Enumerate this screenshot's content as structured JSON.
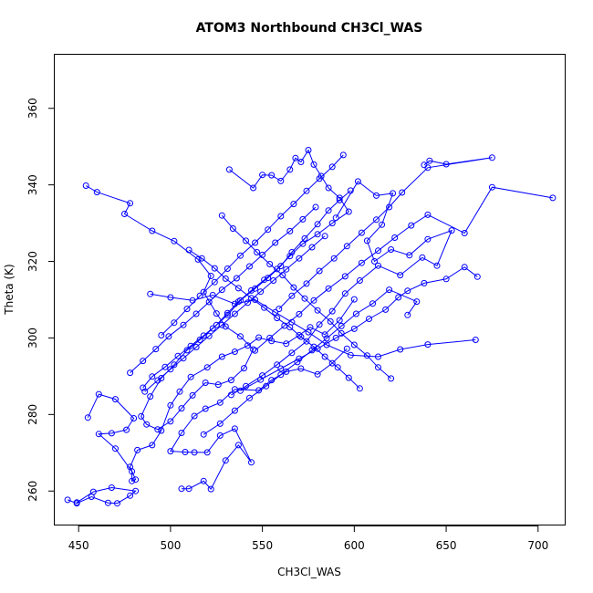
{
  "chart_data": {
    "type": "line",
    "title": "ATOM3 Northbound CH3Cl_WAS",
    "xlabel": "CH3Cl_WAS",
    "ylabel": "Theta (K)",
    "xlim": [
      437,
      715
    ],
    "ylim": [
      251,
      374
    ],
    "xticks": [
      450,
      500,
      550,
      600,
      650,
      700
    ],
    "yticks": [
      260,
      280,
      300,
      320,
      340,
      360
    ],
    "series_color": "#0000ff",
    "markers": "open-circle",
    "grid": false,
    "series": [
      {
        "values": [
          [
            444,
            257.7
          ],
          [
            449,
            256.8
          ],
          [
            457,
            258.5
          ],
          [
            466,
            256.9
          ],
          [
            471,
            256.8
          ],
          [
            478,
            258.8
          ],
          [
            481,
            260.0
          ],
          [
            468,
            260.9
          ],
          [
            458,
            259.8
          ],
          [
            449,
            257.0
          ]
        ]
      },
      {
        "values": [
          [
            455,
            279.2
          ],
          [
            461,
            285.3
          ],
          [
            470,
            284.0
          ],
          [
            480,
            279.0
          ],
          [
            476,
            276.0
          ],
          [
            468,
            275.1
          ],
          [
            461,
            274.9
          ],
          [
            470,
            271.1
          ],
          [
            479,
            265.1
          ],
          [
            479,
            262.6
          ],
          [
            481,
            263.0
          ],
          [
            478,
            266.3
          ],
          [
            482,
            270.7
          ],
          [
            490,
            272.0
          ],
          [
            495,
            275.8
          ],
          [
            500,
            282.4
          ],
          [
            505,
            286.0
          ],
          [
            511,
            289.8
          ],
          [
            520,
            292.3
          ],
          [
            528,
            295.1
          ],
          [
            535,
            296.4
          ],
          [
            542,
            298.0
          ],
          [
            548,
            300.1
          ],
          [
            555,
            299.2
          ],
          [
            563,
            298.5
          ],
          [
            570,
            300.7
          ],
          [
            576,
            302.8
          ],
          [
            584,
            300.9
          ],
          [
            592,
            304.6
          ],
          [
            600,
            310.1
          ]
        ]
      },
      {
        "values": [
          [
            454,
            339.8
          ],
          [
            460,
            338.1
          ],
          [
            478,
            335.2
          ],
          [
            475,
            332.4
          ],
          [
            490,
            328.0
          ],
          [
            502,
            325.3
          ],
          [
            515,
            320.5
          ],
          [
            522,
            316.2
          ],
          [
            518,
            312.0
          ],
          [
            525,
            306.4
          ],
          [
            530,
            303.0
          ],
          [
            538,
            300.4
          ],
          [
            545,
            297.0
          ],
          [
            540,
            292.1
          ],
          [
            533,
            289.0
          ],
          [
            526,
            287.8
          ],
          [
            519,
            288.3
          ],
          [
            512,
            285.0
          ],
          [
            506,
            281.6
          ],
          [
            500,
            278.2
          ],
          [
            493,
            276.1
          ],
          [
            487,
            277.4
          ],
          [
            484,
            279.5
          ],
          [
            489,
            284.7
          ],
          [
            495,
            289.5
          ],
          [
            502,
            293.0
          ],
          [
            509,
            296.8
          ],
          [
            516,
            299.5
          ],
          [
            523,
            302.5
          ],
          [
            531,
            306.0
          ],
          [
            538,
            309.8
          ],
          [
            546,
            312.9
          ],
          [
            553,
            315.7
          ],
          [
            560,
            318.8
          ],
          [
            566,
            322.4
          ],
          [
            573,
            326.0
          ],
          [
            580,
            329.7
          ],
          [
            586,
            333.3
          ],
          [
            592,
            336.0
          ],
          [
            598,
            338.5
          ]
        ]
      },
      {
        "values": [
          [
            489,
            311.5
          ],
          [
            500,
            310.6
          ],
          [
            512,
            309.8
          ],
          [
            523,
            311.2
          ],
          [
            535,
            308.9
          ],
          [
            546,
            310.0
          ],
          [
            557,
            306.7
          ],
          [
            566,
            304.1
          ],
          [
            575,
            301.5
          ],
          [
            585,
            298.2
          ],
          [
            598,
            295.5
          ],
          [
            613,
            295.1
          ],
          [
            625,
            297.0
          ],
          [
            640,
            298.3
          ],
          [
            666,
            299.5
          ]
        ]
      },
      {
        "values": [
          [
            506,
            260.6
          ],
          [
            510,
            260.6
          ],
          [
            518,
            262.6
          ],
          [
            522,
            260.5
          ],
          [
            530,
            268.0
          ],
          [
            537,
            272.0
          ],
          [
            544,
            267.5
          ],
          [
            535,
            276.3
          ],
          [
            527,
            274.5
          ],
          [
            520,
            270.1
          ],
          [
            513,
            270.1
          ],
          [
            508,
            270.2
          ],
          [
            500,
            270.4
          ],
          [
            506,
            275.2
          ],
          [
            513,
            279.6
          ],
          [
            519,
            281.5
          ],
          [
            527,
            283.1
          ],
          [
            535,
            286.6
          ],
          [
            548,
            286.3
          ],
          [
            555,
            289.0
          ],
          [
            563,
            291.2
          ],
          [
            571,
            292.0
          ],
          [
            580,
            290.5
          ],
          [
            588,
            293.4
          ],
          [
            596,
            297.2
          ]
        ]
      },
      {
        "values": [
          [
            532,
            344.0
          ],
          [
            545,
            339.2
          ],
          [
            550,
            342.6
          ],
          [
            555,
            342.5
          ],
          [
            560,
            341.0
          ],
          [
            565,
            344.0
          ],
          [
            568,
            347.0
          ],
          [
            571,
            346.0
          ],
          [
            575,
            349.1
          ],
          [
            578,
            345.3
          ],
          [
            582,
            342.3
          ],
          [
            586,
            339.2
          ],
          [
            592,
            336.6
          ],
          [
            597,
            333.0
          ],
          [
            588,
            330.0
          ],
          [
            580,
            327.1
          ],
          [
            572,
            324.6
          ],
          [
            565,
            321.4
          ],
          [
            558,
            318.0
          ],
          [
            551,
            315.2
          ],
          [
            544,
            312.4
          ],
          [
            537,
            309.5
          ],
          [
            531,
            306.5
          ],
          [
            525,
            303.4
          ],
          [
            518,
            300.6
          ],
          [
            511,
            297.9
          ],
          [
            504,
            295.3
          ],
          [
            497,
            292.4
          ],
          [
            490,
            289.9
          ],
          [
            485,
            287.0
          ]
        ]
      },
      {
        "values": [
          [
            590,
            331.4
          ],
          [
            602,
            340.9
          ],
          [
            612,
            337.2
          ],
          [
            621,
            337.8
          ],
          [
            615,
            329.6
          ],
          [
            607,
            325.4
          ],
          [
            611,
            320.0
          ],
          [
            620,
            323.1
          ],
          [
            630,
            321.6
          ],
          [
            640,
            325.8
          ],
          [
            653,
            328.1
          ],
          [
            645,
            318.9
          ],
          [
            637,
            321.0
          ],
          [
            625,
            316.4
          ],
          [
            613,
            318.9
          ],
          [
            603,
            315.0
          ],
          [
            595,
            311.6
          ],
          [
            588,
            307.0
          ],
          [
            581,
            303.5
          ],
          [
            574,
            299.1
          ],
          [
            566,
            296.1
          ],
          [
            558,
            293.0
          ],
          [
            550,
            290.2
          ],
          [
            541,
            287.4
          ],
          [
            533,
            285.1
          ]
        ]
      },
      {
        "values": [
          [
            638,
            345.2
          ],
          [
            641,
            346.3
          ],
          [
            650,
            345.4
          ],
          [
            675,
            347.1
          ],
          [
            640,
            344.5
          ],
          [
            626,
            338.0
          ],
          [
            619,
            334.2
          ],
          [
            612,
            330.9
          ],
          [
            604,
            327.5
          ],
          [
            596,
            324.0
          ],
          [
            589,
            320.8
          ],
          [
            581,
            317.5
          ],
          [
            574,
            314.2
          ],
          [
            566,
            311.0
          ],
          [
            559,
            307.6
          ]
        ]
      },
      {
        "values": [
          [
            708,
            336.6
          ],
          [
            675,
            339.4
          ],
          [
            660,
            327.4
          ],
          [
            640,
            332.2
          ],
          [
            631,
            329.4
          ],
          [
            622,
            326.2
          ],
          [
            613,
            322.8
          ],
          [
            604,
            319.6
          ],
          [
            595,
            316.1
          ],
          [
            586,
            312.9
          ],
          [
            578,
            309.8
          ],
          [
            570,
            306.2
          ],
          [
            562,
            303.2
          ],
          [
            554,
            300.0
          ],
          [
            546,
            296.7
          ]
        ]
      },
      {
        "values": [
          [
            667,
            316.0
          ],
          [
            660,
            318.5
          ],
          [
            650,
            315.4
          ],
          [
            638,
            314.3
          ],
          [
            629,
            312.3
          ],
          [
            624,
            310.6
          ],
          [
            617,
            307.4
          ],
          [
            608,
            305.0
          ],
          [
            600,
            302.4
          ],
          [
            590,
            300.0
          ],
          [
            580,
            297.2
          ],
          [
            570,
            294.6
          ],
          [
            560,
            292.0
          ],
          [
            549,
            289.1
          ],
          [
            538,
            286.2
          ]
        ]
      },
      {
        "values": [
          [
            629,
            306.0
          ],
          [
            634,
            309.5
          ],
          [
            619,
            312.6
          ],
          [
            610,
            309.0
          ],
          [
            601,
            306.3
          ],
          [
            593,
            303.1
          ],
          [
            585,
            299.9
          ],
          [
            577,
            296.8
          ],
          [
            569,
            293.7
          ],
          [
            560,
            290.4
          ],
          [
            552,
            287.4
          ],
          [
            543,
            284.3
          ],
          [
            535,
            281.0
          ],
          [
            527,
            277.6
          ],
          [
            518,
            274.8
          ]
        ]
      },
      {
        "values": [
          [
            510,
            323.0
          ],
          [
            517,
            320.8
          ],
          [
            524,
            318.2
          ],
          [
            530,
            315.5
          ],
          [
            537,
            313.0
          ],
          [
            544,
            310.4
          ],
          [
            551,
            307.9
          ],
          [
            558,
            305.2
          ],
          [
            565,
            302.8
          ],
          [
            571,
            300.3
          ],
          [
            578,
            297.7
          ],
          [
            584,
            295.1
          ],
          [
            591,
            292.3
          ],
          [
            597,
            289.6
          ],
          [
            603,
            286.8
          ]
        ]
      },
      {
        "values": [
          [
            528,
            332.0
          ],
          [
            534,
            328.6
          ],
          [
            541,
            325.4
          ],
          [
            547,
            322.4
          ],
          [
            554,
            319.3
          ],
          [
            561,
            316.4
          ],
          [
            567,
            313.2
          ],
          [
            573,
            310.3
          ],
          [
            580,
            307.2
          ],
          [
            587,
            304.3
          ],
          [
            593,
            301.2
          ],
          [
            600,
            298.2
          ],
          [
            607,
            295.4
          ],
          [
            613,
            292.3
          ],
          [
            620,
            289.4
          ]
        ]
      },
      {
        "values": [
          [
            495,
            300.7
          ],
          [
            502,
            304.0
          ],
          [
            509,
            307.6
          ],
          [
            516,
            311.0
          ],
          [
            524,
            314.6
          ],
          [
            531,
            318.1
          ],
          [
            538,
            321.5
          ],
          [
            546,
            324.9
          ],
          [
            553,
            328.3
          ],
          [
            560,
            331.8
          ],
          [
            567,
            335.0
          ],
          [
            574,
            338.4
          ],
          [
            581,
            341.6
          ],
          [
            588,
            344.7
          ],
          [
            594,
            347.8
          ]
        ]
      },
      {
        "values": [
          [
            478,
            290.9
          ],
          [
            485,
            294.0
          ],
          [
            492,
            297.1
          ],
          [
            499,
            300.4
          ],
          [
            507,
            303.4
          ],
          [
            514,
            306.3
          ],
          [
            521,
            309.4
          ],
          [
            528,
            312.6
          ],
          [
            536,
            315.6
          ],
          [
            543,
            318.7
          ],
          [
            550,
            321.7
          ],
          [
            557,
            324.9
          ],
          [
            565,
            327.9
          ],
          [
            572,
            331.0
          ],
          [
            579,
            334.2
          ]
        ]
      },
      {
        "values": [
          [
            486,
            286.0
          ],
          [
            493,
            288.9
          ],
          [
            500,
            291.8
          ],
          [
            507,
            294.7
          ],
          [
            514,
            297.6
          ],
          [
            521,
            300.5
          ],
          [
            528,
            303.4
          ],
          [
            535,
            306.3
          ],
          [
            542,
            309.2
          ],
          [
            549,
            312.1
          ],
          [
            556,
            315.0
          ],
          [
            563,
            317.9
          ],
          [
            570,
            320.8
          ],
          [
            577,
            323.7
          ],
          [
            584,
            326.6
          ]
        ]
      }
    ]
  }
}
